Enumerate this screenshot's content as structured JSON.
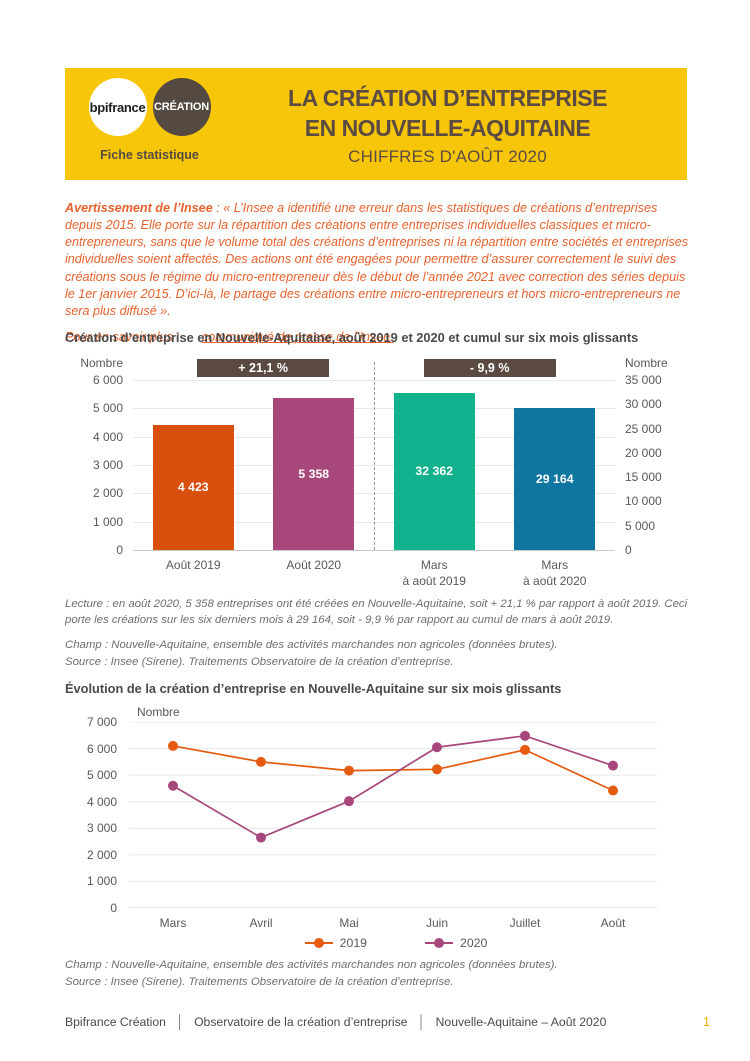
{
  "header": {
    "logo_bpifrance": "bpifrance",
    "logo_creation": "CRÉATION",
    "tagline": "Fiche statistique",
    "title_line1": "LA CRÉATION D’ENTREPRISE",
    "title_line2": "EN NOUVELLE-AQUITAINE",
    "subtitle": "CHIFFRES D'AOÛT 2020",
    "banner_color": "#f7c608",
    "title_color": "#5b4b43"
  },
  "notice": {
    "label": "Avertissement de l’Insee",
    "body": " : « L’Insee a identifié une erreur dans les statistiques de créations d’entreprises depuis 2015. Elle porte sur la répartition des créations entre entreprises individuelles classiques et micro-entrepreneurs, sans que le volume total des créations d’entreprises ni la répartition entre sociétés et entreprises individuelles soient affectés. Des actions ont été engagées pour permettre d’assurer correctement le suivi des créations sous le régime du micro-entrepreneur dès le début de l’année 2021 avec correction des séries depuis le 1er janvier 2015. D’ici-là, le partage des créations entre micro-entrepreneurs et hors micro-entrepreneurs ne sera plus diffusé ».",
    "more_label": "Pour en savoir plus :",
    "link_text": "communiqué de presse de l’Insee.",
    "text_color": "#e8622d"
  },
  "chart_data": [
    {
      "type": "bar",
      "title": "Création d’entreprise en Nouvelle-Aquitaine, août 2019 et 2020 et cumul sur six mois glissants",
      "axes": {
        "left": {
          "label": "Nombre",
          "min": 0,
          "max": 6000,
          "ticks": [
            0,
            1000,
            2000,
            3000,
            4000,
            5000,
            6000
          ]
        },
        "right": {
          "label": "Nombre",
          "min": 0,
          "max": 35000,
          "ticks": [
            0,
            5000,
            10000,
            15000,
            20000,
            25000,
            30000,
            35000
          ]
        }
      },
      "bars": [
        {
          "category": "Août 2019",
          "value": 4423,
          "label": "4 423",
          "color": "#d94f0e",
          "axis": "left"
        },
        {
          "category": "Août 2020",
          "value": 5358,
          "label": "5 358",
          "color": "#a8487a",
          "axis": "left"
        },
        {
          "category": "Mars\nà août 2019",
          "value": 32362,
          "label": "32 362",
          "color": "#0fb28c",
          "axis": "right"
        },
        {
          "category": "Mars\nà août 2020",
          "value": 29164,
          "label": "29 164",
          "color": "#0e76a0",
          "axis": "right"
        }
      ],
      "annotations": [
        "+ 21,1 %",
        "- 9,9 %"
      ],
      "annotation_bg": "#5a4a42",
      "grid": true
    },
    {
      "type": "line",
      "title": "Évolution de la création d’entreprise en Nouvelle-Aquitaine sur six mois glissants",
      "ylabel": "Nombre",
      "ylim": [
        0,
        7000
      ],
      "yticks": [
        0,
        1000,
        2000,
        3000,
        4000,
        5000,
        6000,
        7000
      ],
      "categories": [
        "Mars",
        "Avril",
        "Mai",
        "Juin",
        "Juillet",
        "Août"
      ],
      "series": [
        {
          "name": "2019",
          "color": "#e55b10",
          "values": [
            6100,
            5500,
            5170,
            5220,
            5950,
            4423
          ]
        },
        {
          "name": "2020",
          "color": "#a8477b",
          "values": [
            4600,
            2650,
            4020,
            6050,
            6480,
            5358
          ]
        }
      ],
      "legend_position": "bottom",
      "grid": true
    }
  ],
  "notes": {
    "bar_lecture": "Lecture : en août 2020, 5 358 entreprises ont été créées en Nouvelle-Aquitaine, soit + 21,1 % par rapport à août 2019. Ceci porte les créations sur les six derniers mois à 29 164, soit - 9,9 % par rapport au cumul de mars à août 2019.",
    "bar_champ": "Champ : Nouvelle-Aquitaine, ensemble des activités marchandes non agricoles (données brutes).",
    "bar_source": "Source : Insee (Sirene). Traitements Observatoire de la création d’entreprise.",
    "line_champ": "Champ : Nouvelle-Aquitaine, ensemble des activités marchandes non agricoles (données brutes).",
    "line_source": "Source : Insee (Sirene). Traitements Observatoire de la création d’entreprise."
  },
  "footer": {
    "items": [
      "Bpifrance Création",
      "Observatoire de la création d’entreprise",
      "Nouvelle-Aquitaine – Août 2020"
    ],
    "separator": "│",
    "page_number": "1",
    "page_number_color": "#f0b400"
  }
}
